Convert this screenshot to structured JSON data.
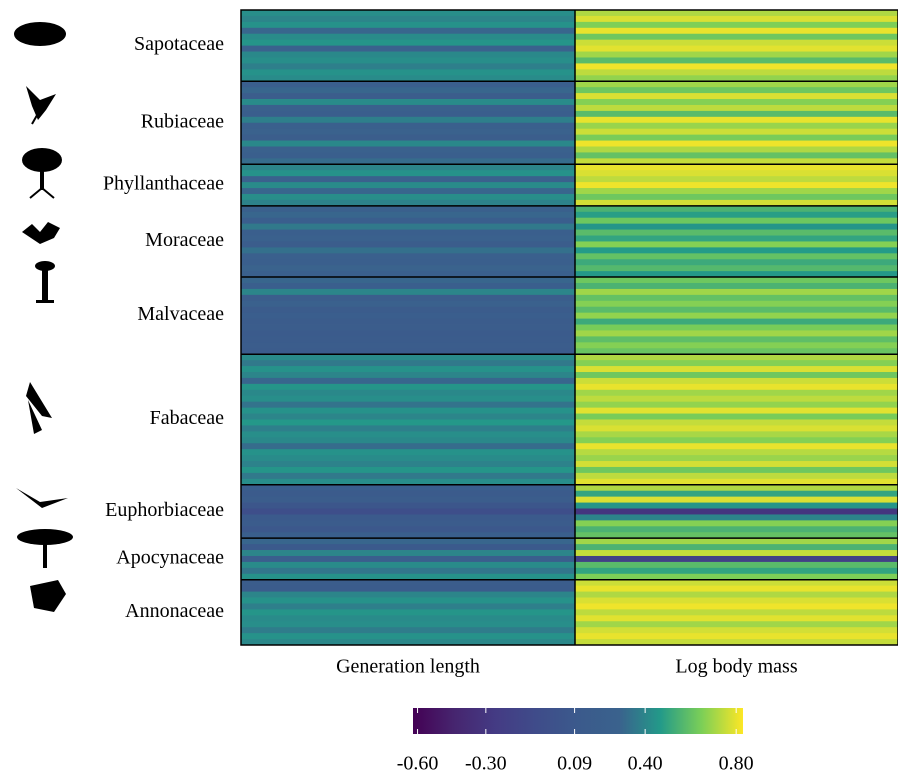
{
  "chart_data": {
    "type": "heatmap",
    "columns": [
      "Generation length",
      "Log body mass"
    ],
    "families": [
      {
        "name": "Sapotaceae",
        "values": [
          [
            0.43,
            0.4,
            0.44,
            0.3,
            0.42,
            0.45,
            0.28,
            0.41,
            0.43,
            0.38,
            0.44,
            0.42
          ],
          [
            0.72,
            0.78,
            0.65,
            0.8,
            0.62,
            0.76,
            0.79,
            0.7,
            0.58,
            0.81,
            0.74,
            0.68
          ]
        ]
      },
      {
        "name": "Rubiaceae",
        "values": [
          [
            0.22,
            0.3,
            0.18,
            0.42,
            0.25,
            0.2,
            0.38,
            0.24,
            0.28,
            0.19,
            0.41,
            0.26,
            0.22,
            0.32
          ],
          [
            0.7,
            0.62,
            0.78,
            0.66,
            0.74,
            0.58,
            0.8,
            0.69,
            0.76,
            0.64,
            0.81,
            0.72,
            0.6,
            0.75
          ]
        ]
      },
      {
        "name": "Phyllanthaceae",
        "values": [
          [
            0.4,
            0.44,
            0.26,
            0.42,
            0.3,
            0.43,
            0.39
          ],
          [
            0.8,
            0.78,
            0.74,
            0.81,
            0.7,
            0.62,
            0.77
          ]
        ]
      },
      {
        "name": "Moraceae",
        "values": [
          [
            0.24,
            0.3,
            0.2,
            0.36,
            0.22,
            0.27,
            0.18,
            0.33,
            0.25,
            0.21,
            0.29,
            0.23
          ],
          [
            0.55,
            0.48,
            0.62,
            0.45,
            0.58,
            0.5,
            0.66,
            0.47,
            0.6,
            0.52,
            0.57,
            0.46
          ]
        ]
      },
      {
        "name": "Malvaceae",
        "values": [
          [
            0.3,
            0.22,
            0.4,
            0.18,
            0.26,
            0.15,
            0.2,
            0.14,
            0.17,
            0.13,
            0.16,
            0.18,
            0.14
          ],
          [
            0.62,
            0.55,
            0.7,
            0.6,
            0.66,
            0.58,
            0.68,
            0.52,
            0.64,
            0.7,
            0.59,
            0.66,
            0.61
          ]
        ]
      },
      {
        "name": "Fabaceae",
        "values": [
          [
            0.42,
            0.36,
            0.44,
            0.4,
            0.3,
            0.45,
            0.41,
            0.43,
            0.34,
            0.44,
            0.4,
            0.46,
            0.38,
            0.43,
            0.41,
            0.32,
            0.44,
            0.42,
            0.39,
            0.45,
            0.36,
            0.43
          ],
          [
            0.72,
            0.66,
            0.78,
            0.62,
            0.76,
            0.8,
            0.7,
            0.74,
            0.68,
            0.79,
            0.64,
            0.75,
            0.78,
            0.71,
            0.66,
            0.8,
            0.73,
            0.69,
            0.77,
            0.62,
            0.74,
            0.79
          ]
        ]
      },
      {
        "name": "Euphorbiaceae",
        "values": [
          [
            0.2,
            0.12,
            0.18,
            0.05,
            -0.05,
            0.1,
            0.15,
            0.08,
            0.22
          ],
          [
            0.72,
            0.5,
            0.78,
            0.45,
            -0.3,
            0.4,
            0.66,
            0.55,
            0.6
          ]
        ]
      },
      {
        "name": "Apocynaceae",
        "values": [
          [
            0.3,
            0.1,
            0.4,
            0.2,
            0.42,
            0.35,
            0.44
          ],
          [
            0.7,
            0.55,
            0.75,
            -0.2,
            0.58,
            0.5,
            0.65
          ]
        ]
      },
      {
        "name": "Annonaceae",
        "values": [
          [
            0.18,
            0.16,
            0.4,
            0.44,
            0.38,
            0.45,
            0.42,
            0.43,
            0.37,
            0.44,
            0.41
          ],
          [
            0.76,
            0.8,
            0.72,
            0.78,
            0.81,
            0.74,
            0.79,
            0.7,
            0.77,
            0.8,
            0.75
          ]
        ]
      }
    ],
    "colors": [
      "#440154",
      "#46256f",
      "#443b84",
      "#3f4c8a",
      "#3b5a8c",
      "#3a628d",
      "#239a89",
      "#7ccf57",
      "#fde725"
    ],
    "zlim": [
      -0.62,
      0.83
    ],
    "zticks": [
      {
        "value": -0.6,
        "label": "-0.60"
      },
      {
        "value": -0.3,
        "label": "-0.30"
      },
      0.09,
      {
        "value": 0.4,
        "label": "0.40"
      },
      {
        "value": 0.8,
        "label": "0.80"
      }
    ]
  }
}
